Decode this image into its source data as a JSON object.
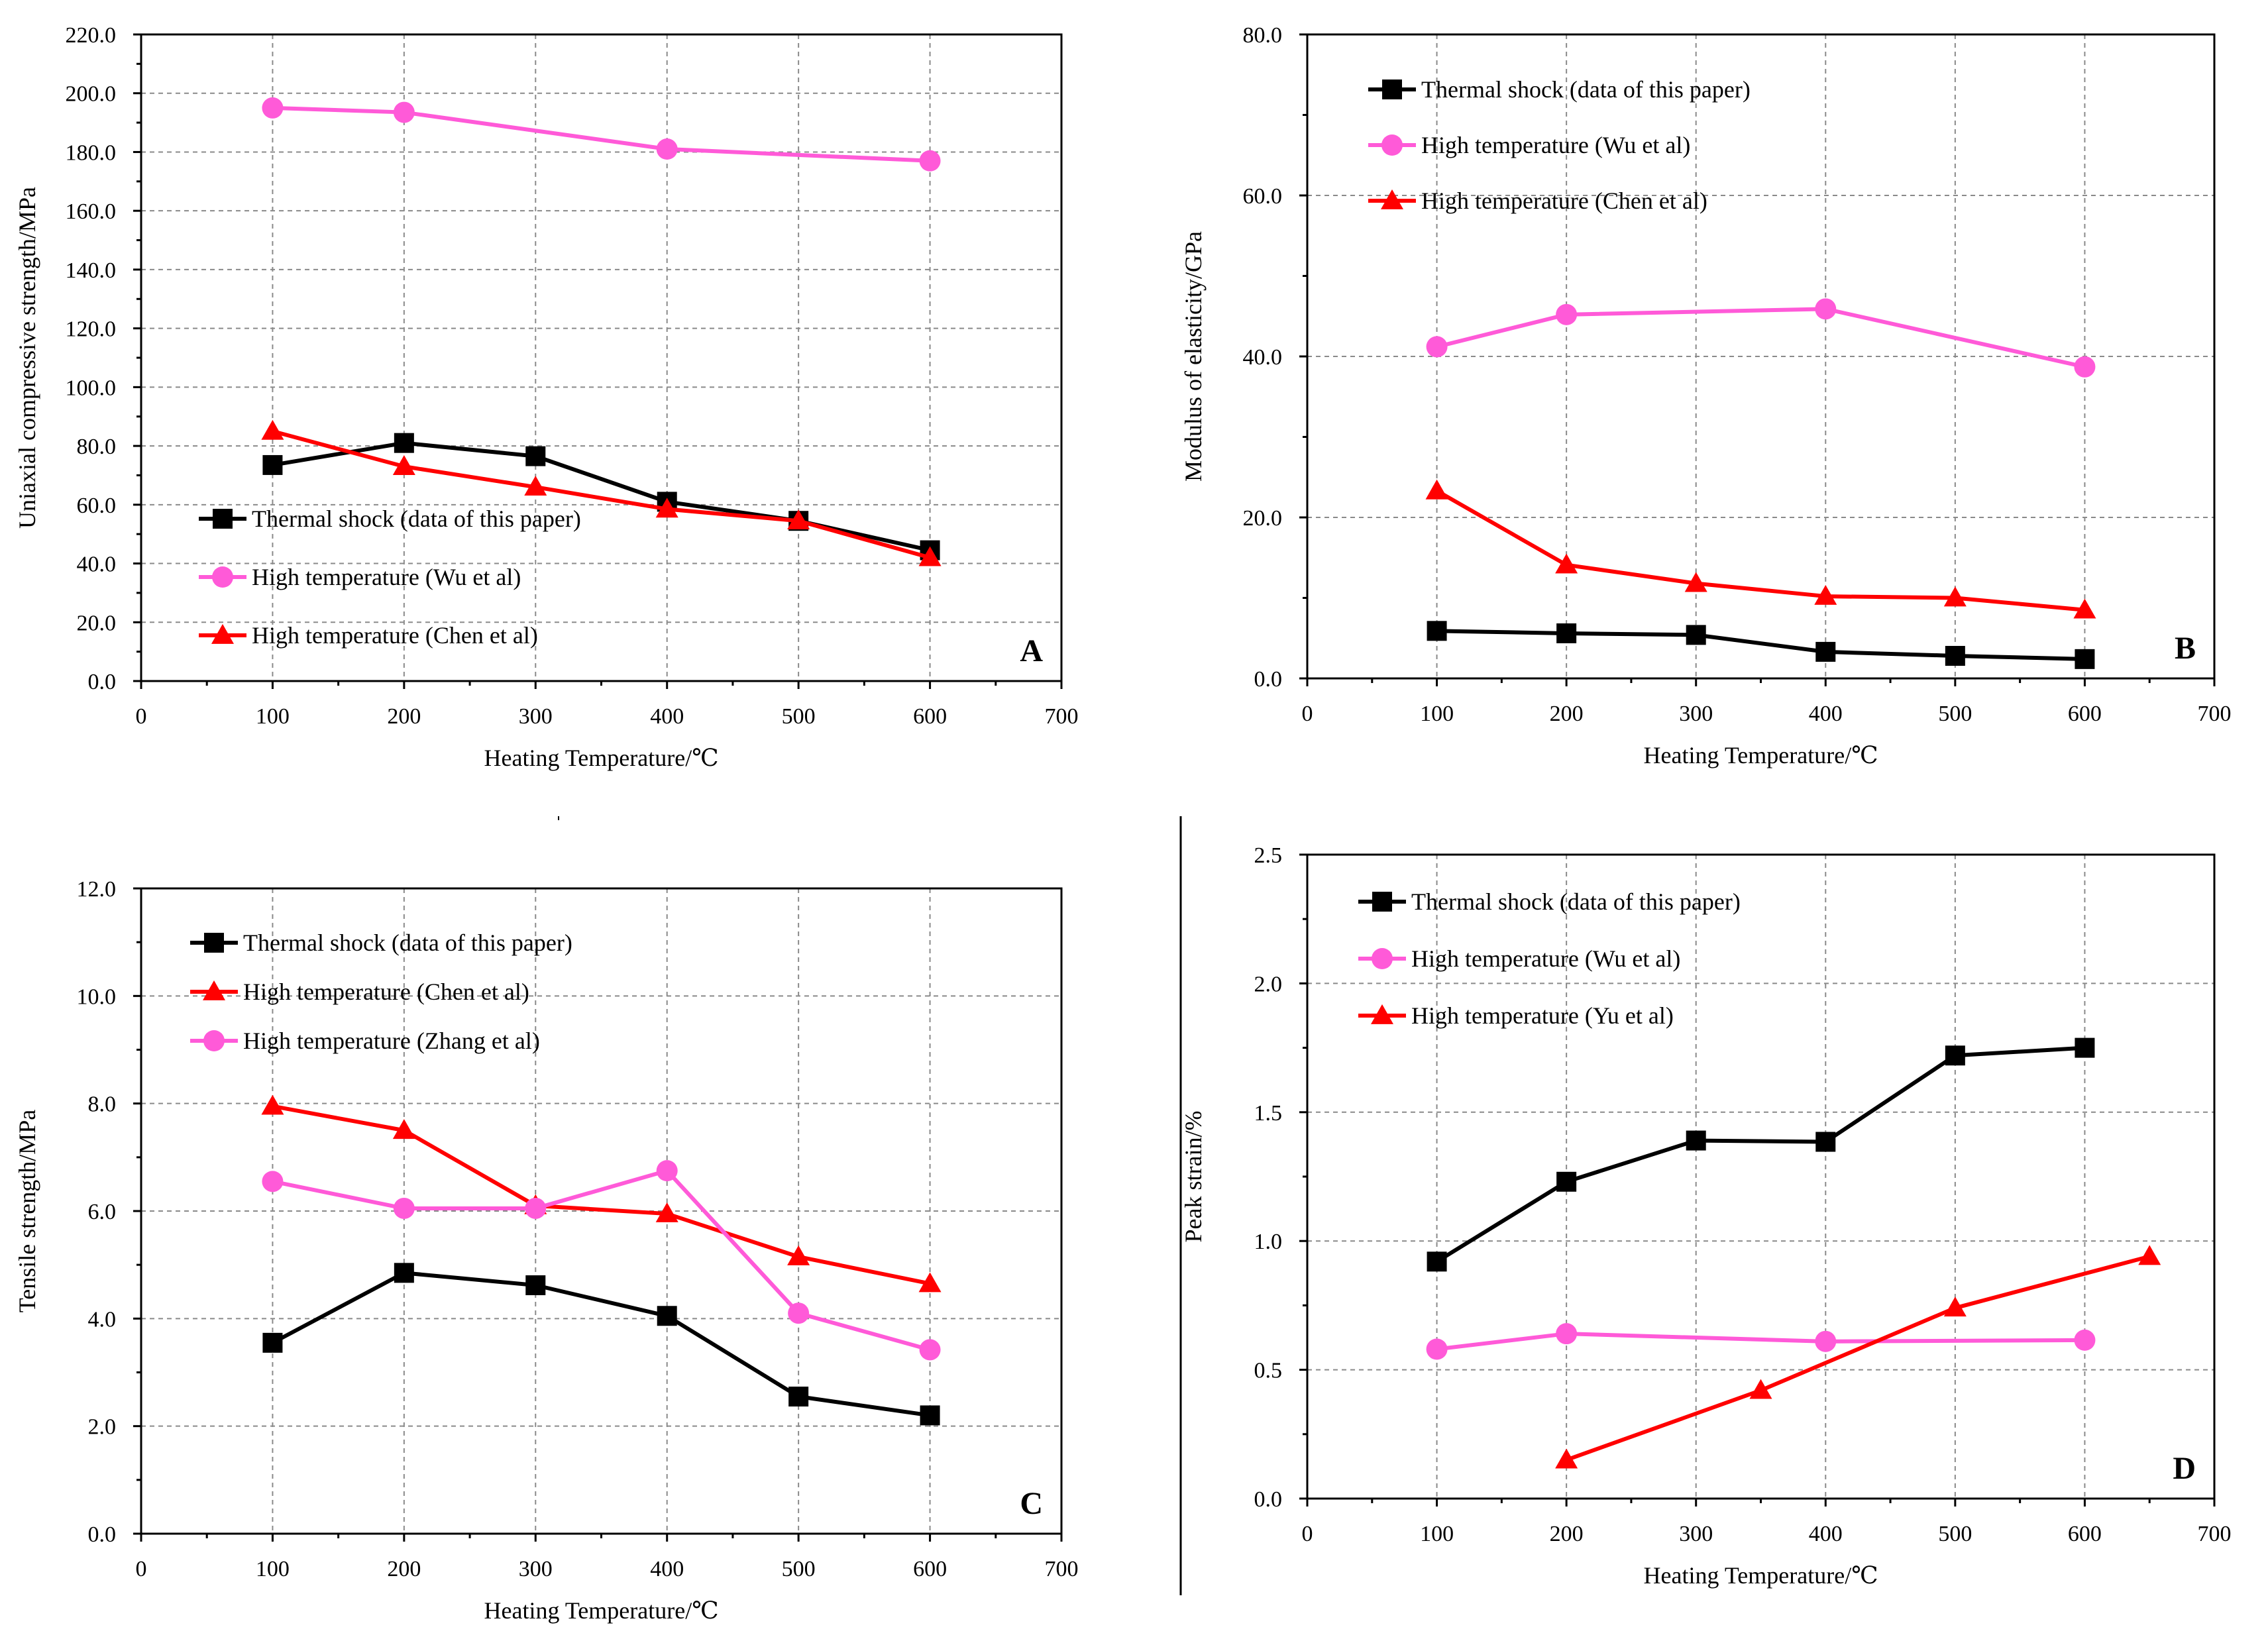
{
  "colors": {
    "black_series": "#000000",
    "pink_series": "#ff5ad8",
    "red_series": "#ff0000"
  },
  "chart_data": [
    {
      "panel": "A",
      "type": "line",
      "xlabel": "Heating Temperature/℃",
      "ylabel": "Uniaxial compressive strength/MPa",
      "xlim": [
        0,
        700
      ],
      "ylim": [
        0,
        220
      ],
      "x_ticks": [
        "0",
        "100",
        "200",
        "300",
        "400",
        "500",
        "600",
        "700"
      ],
      "y_ticks": [
        "0.0",
        "20.0",
        "40.0",
        "60.0",
        "80.0",
        "100.0",
        "120.0",
        "140.0",
        "160.0",
        "180.0",
        "200.0",
        "220.0"
      ],
      "legend_position": "lower-left",
      "series": [
        {
          "name": "Thermal shock (data of this paper)",
          "marker": "square",
          "color": "#000000",
          "x": [
            100,
            200,
            300,
            400,
            500,
            600
          ],
          "y": [
            73.5,
            81,
            76.5,
            61,
            54.5,
            44.5
          ]
        },
        {
          "name": "High temperature (Wu et al)",
          "marker": "circle",
          "color": "#ff5ad8",
          "x": [
            100,
            200,
            400,
            600
          ],
          "y": [
            195,
            193.5,
            181,
            177
          ]
        },
        {
          "name": "High temperature (Chen et al)",
          "marker": "triangle",
          "color": "#ff0000",
          "x": [
            100,
            200,
            300,
            400,
            500,
            600
          ],
          "y": [
            85,
            73,
            66,
            58.5,
            54.5,
            42
          ]
        }
      ]
    },
    {
      "panel": "B",
      "type": "line",
      "xlabel": "Heating Temperature/℃",
      "ylabel": "Modulus of elasticity/GPa",
      "xlim": [
        0,
        700
      ],
      "ylim": [
        0,
        80
      ],
      "x_ticks": [
        "0",
        "100",
        "200",
        "300",
        "400",
        "500",
        "600",
        "700"
      ],
      "y_ticks": [
        "0.0",
        "20.0",
        "40.0",
        "60.0",
        "80.0"
      ],
      "legend_position": "top-left",
      "series": [
        {
          "name": "Thermal shock (data of this paper)",
          "marker": "square",
          "color": "#000000",
          "x": [
            100,
            200,
            300,
            400,
            500,
            600
          ],
          "y": [
            5.9,
            5.6,
            5.4,
            3.3,
            2.8,
            2.4
          ]
        },
        {
          "name": "High temperature (Wu et al)",
          "marker": "circle",
          "color": "#ff5ad8",
          "x": [
            100,
            200,
            400,
            600
          ],
          "y": [
            41.2,
            45.2,
            45.9,
            38.7
          ]
        },
        {
          "name": "High temperature (Chen et al)",
          "marker": "triangle",
          "color": "#ff0000",
          "x": [
            100,
            200,
            300,
            400,
            500,
            600
          ],
          "y": [
            23.3,
            14.1,
            11.8,
            10.2,
            10.0,
            8.5
          ]
        }
      ]
    },
    {
      "panel": "C",
      "type": "line",
      "xlabel": "Heating Temperature/℃",
      "ylabel": "Tensile strength/MPa",
      "xlim": [
        0,
        700
      ],
      "ylim": [
        0,
        12
      ],
      "x_ticks": [
        "0",
        "100",
        "200",
        "300",
        "400",
        "500",
        "600",
        "700"
      ],
      "y_ticks": [
        "0.0",
        "2.0",
        "4.0",
        "6.0",
        "8.0",
        "10.0",
        "12.0"
      ],
      "legend_position": "top-left",
      "series": [
        {
          "name": "Thermal shock (data of this paper)",
          "marker": "square",
          "color": "#000000",
          "x": [
            100,
            200,
            300,
            400,
            500,
            600
          ],
          "y": [
            3.55,
            4.85,
            4.62,
            4.05,
            2.55,
            2.2
          ]
        },
        {
          "name": "High temperature (Chen et al)",
          "marker": "triangle",
          "color": "#ff0000",
          "x": [
            100,
            200,
            300,
            400,
            500,
            600
          ],
          "y": [
            7.95,
            7.5,
            6.1,
            5.95,
            5.15,
            4.65
          ]
        },
        {
          "name": "High temperature (Zhang et al)",
          "marker": "circle",
          "color": "#ff5ad8",
          "x": [
            100,
            200,
            300,
            400,
            500,
            600
          ],
          "y": [
            6.55,
            6.05,
            6.05,
            6.75,
            4.1,
            3.42
          ]
        }
      ]
    },
    {
      "panel": "D",
      "type": "line",
      "xlabel": "Heating Temperature/℃",
      "ylabel": "Peak strain/%",
      "xlim": [
        0,
        700
      ],
      "ylim": [
        0,
        2.5
      ],
      "x_ticks": [
        "0",
        "100",
        "200",
        "300",
        "400",
        "500",
        "600",
        "700"
      ],
      "y_ticks": [
        "0.0",
        "0.5",
        "1.0",
        "1.5",
        "2.0",
        "2.5"
      ],
      "legend_position": "top-left",
      "series": [
        {
          "name": "Thermal shock (data of this paper)",
          "marker": "square",
          "color": "#000000",
          "x": [
            100,
            200,
            300,
            400,
            500,
            600
          ],
          "y": [
            0.92,
            1.23,
            1.39,
            1.385,
            1.72,
            1.75
          ]
        },
        {
          "name": "High temperature (Wu et al)",
          "marker": "circle",
          "color": "#ff5ad8",
          "x": [
            100,
            200,
            400,
            600
          ],
          "y": [
            0.58,
            0.64,
            0.61,
            0.615
          ]
        },
        {
          "name": "High temperature (Yu et al)",
          "marker": "triangle",
          "color": "#ff0000",
          "x": [
            200,
            350,
            500,
            650
          ],
          "y": [
            0.15,
            0.42,
            0.74,
            0.94
          ]
        }
      ]
    }
  ]
}
